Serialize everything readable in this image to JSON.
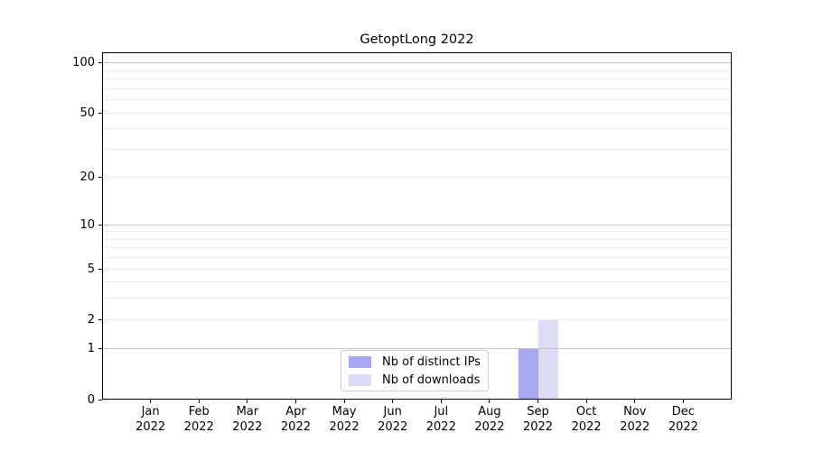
{
  "chart_data": {
    "type": "bar",
    "title": "GetoptLong 2022",
    "year": "2022",
    "categories": [
      "Jan",
      "Feb",
      "Mar",
      "Apr",
      "May",
      "Jun",
      "Jul",
      "Aug",
      "Sep",
      "Oct",
      "Nov",
      "Dec"
    ],
    "series": [
      {
        "name": "Nb of distinct IPs",
        "color": "#a8a8f0",
        "values": [
          0,
          0,
          0,
          0,
          0,
          0,
          0,
          0,
          1,
          0,
          0,
          0
        ]
      },
      {
        "name": "Nb of downloads",
        "color": "#dcdcf7",
        "values": [
          0,
          0,
          0,
          0,
          0,
          0,
          0,
          0,
          2,
          0,
          0,
          0
        ]
      }
    ],
    "y_ticks": [
      0,
      1,
      2,
      5,
      10,
      20,
      50,
      100
    ],
    "y_scale": "log1p",
    "ylim": [
      0,
      116
    ],
    "grid": "horizontal",
    "major_grid_values": [
      1,
      10,
      100
    ],
    "minor_grid_values": [
      2,
      3,
      4,
      5,
      6,
      7,
      8,
      9,
      20,
      30,
      40,
      50,
      60,
      70,
      80,
      90
    ],
    "legend_position": "bottom-center",
    "colors": {
      "major_grid": "#c2c2c2",
      "minor_grid": "#ececec",
      "axis": "#000000",
      "text": "#000000",
      "legend_border": "#cccccc",
      "background": "#ffffff"
    }
  }
}
